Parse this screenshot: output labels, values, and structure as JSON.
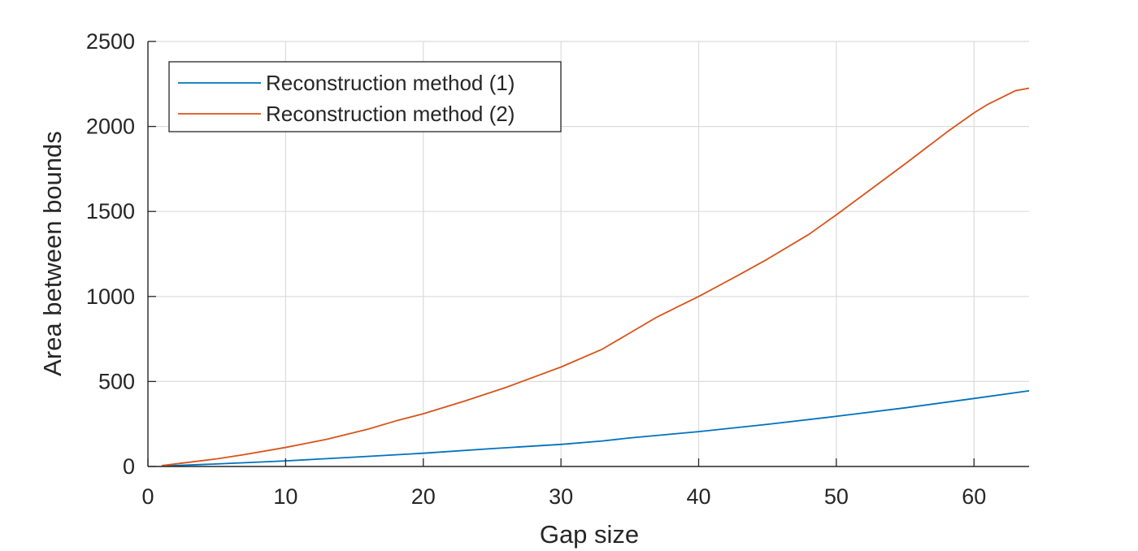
{
  "chart_data": {
    "type": "line",
    "xlabel": "Gap size",
    "ylabel": "Area between bounds",
    "xlim": [
      0,
      64
    ],
    "ylim": [
      0,
      2500
    ],
    "xticks": [
      "0",
      "10",
      "20",
      "30",
      "40",
      "50",
      "60"
    ],
    "yticks": [
      "0",
      "500",
      "1000",
      "1500",
      "2000",
      "2500"
    ],
    "grid": true,
    "legend_position": "top-left",
    "series": [
      {
        "name": "Reconstruction method (1)",
        "color": "#0072BD",
        "x": [
          1,
          5,
          10,
          15,
          20,
          25,
          30,
          33,
          35,
          40,
          45,
          50,
          55,
          60,
          64
        ],
        "y": [
          2,
          15,
          33,
          55,
          78,
          105,
          130,
          150,
          168,
          205,
          248,
          295,
          345,
          400,
          445
        ]
      },
      {
        "name": "Reconstruction method (2)",
        "color": "#D95319",
        "x": [
          1,
          5,
          7,
          10,
          13,
          16,
          18,
          20,
          23,
          26,
          28,
          30,
          33,
          35,
          37,
          40,
          43,
          45,
          48,
          50,
          53,
          55,
          58,
          60,
          61,
          62,
          63,
          64
        ],
        "y": [
          5,
          45,
          70,
          112,
          160,
          220,
          268,
          310,
          385,
          465,
          525,
          585,
          690,
          785,
          880,
          1000,
          1130,
          1220,
          1365,
          1480,
          1660,
          1780,
          1965,
          2080,
          2130,
          2170,
          2210,
          2225
        ]
      }
    ]
  }
}
